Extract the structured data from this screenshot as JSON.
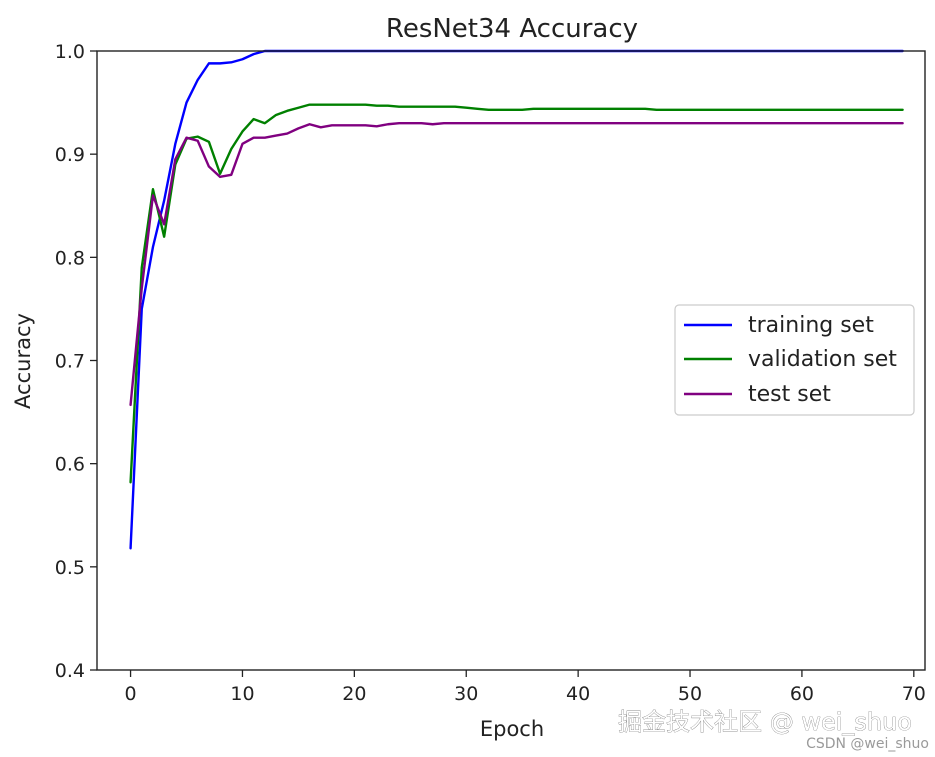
{
  "chart_data": {
    "type": "line",
    "title": "ResNet34 Accuracy",
    "xlabel": "Epoch",
    "ylabel": "Accuracy",
    "xlim": [
      -3,
      71
    ],
    "ylim": [
      0.4,
      1.0
    ],
    "xticks": [
      0,
      10,
      20,
      30,
      40,
      50,
      60,
      70
    ],
    "yticks": [
      0.4,
      0.5,
      0.6,
      0.7,
      0.8,
      0.9,
      1.0
    ],
    "ytick_labels": [
      "0.4",
      "0.5",
      "0.6",
      "0.7",
      "0.8",
      "0.9",
      "1.0"
    ],
    "grid": false,
    "legend_position": "center-right",
    "x": [
      0,
      1,
      2,
      3,
      4,
      5,
      6,
      7,
      8,
      9,
      10,
      11,
      12,
      13,
      14,
      15,
      16,
      17,
      18,
      19,
      20,
      21,
      22,
      23,
      24,
      25,
      26,
      27,
      28,
      29,
      30,
      31,
      32,
      33,
      34,
      35,
      36,
      37,
      38,
      39,
      40,
      41,
      42,
      43,
      44,
      45,
      46,
      47,
      48,
      49,
      50,
      51,
      52,
      53,
      54,
      55,
      56,
      57,
      58,
      59,
      60,
      61,
      62,
      63,
      64,
      65,
      66,
      67,
      68,
      69
    ],
    "series": [
      {
        "name": "training set",
        "color": "#0000ff",
        "values": [
          0.518,
          0.75,
          0.81,
          0.855,
          0.91,
          0.95,
          0.972,
          0.988,
          0.988,
          0.989,
          0.992,
          0.997,
          1.0,
          1.0,
          1.0,
          1.0,
          1.0,
          1.0,
          1.0,
          1.0,
          1.0,
          1.0,
          1.0,
          1.0,
          1.0,
          1.0,
          1.0,
          1.0,
          1.0,
          1.0,
          1.0,
          1.0,
          1.0,
          1.0,
          1.0,
          1.0,
          1.0,
          1.0,
          1.0,
          1.0,
          1.0,
          1.0,
          1.0,
          1.0,
          1.0,
          1.0,
          1.0,
          1.0,
          1.0,
          1.0,
          1.0,
          1.0,
          1.0,
          1.0,
          1.0,
          1.0,
          1.0,
          1.0,
          1.0,
          1.0,
          1.0,
          1.0,
          1.0,
          1.0,
          1.0,
          1.0,
          1.0,
          1.0,
          1.0,
          1.0
        ]
      },
      {
        "name": "validation set",
        "color": "#008000",
        "values": [
          0.582,
          0.79,
          0.866,
          0.82,
          0.89,
          0.915,
          0.917,
          0.912,
          0.881,
          0.905,
          0.922,
          0.934,
          0.93,
          0.938,
          0.942,
          0.945,
          0.948,
          0.948,
          0.948,
          0.948,
          0.948,
          0.948,
          0.947,
          0.947,
          0.946,
          0.946,
          0.946,
          0.946,
          0.946,
          0.946,
          0.945,
          0.944,
          0.943,
          0.943,
          0.943,
          0.943,
          0.944,
          0.944,
          0.944,
          0.944,
          0.944,
          0.944,
          0.944,
          0.944,
          0.944,
          0.944,
          0.944,
          0.943,
          0.943,
          0.943,
          0.943,
          0.943,
          0.943,
          0.943,
          0.943,
          0.943,
          0.943,
          0.943,
          0.943,
          0.943,
          0.943,
          0.943,
          0.943,
          0.943,
          0.943,
          0.943,
          0.943,
          0.943,
          0.943,
          0.943
        ]
      },
      {
        "name": "test set",
        "color": "#800080",
        "values": [
          0.657,
          0.77,
          0.86,
          0.832,
          0.895,
          0.916,
          0.913,
          0.888,
          0.878,
          0.88,
          0.91,
          0.916,
          0.916,
          0.918,
          0.92,
          0.925,
          0.929,
          0.926,
          0.928,
          0.928,
          0.928,
          0.928,
          0.927,
          0.929,
          0.93,
          0.93,
          0.93,
          0.929,
          0.93,
          0.93,
          0.93,
          0.93,
          0.93,
          0.93,
          0.93,
          0.93,
          0.93,
          0.93,
          0.93,
          0.93,
          0.93,
          0.93,
          0.93,
          0.93,
          0.93,
          0.93,
          0.93,
          0.93,
          0.93,
          0.93,
          0.93,
          0.93,
          0.93,
          0.93,
          0.93,
          0.93,
          0.93,
          0.93,
          0.93,
          0.93,
          0.93,
          0.93,
          0.93,
          0.93,
          0.93,
          0.93,
          0.93,
          0.93,
          0.93,
          0.93
        ]
      }
    ]
  },
  "watermark": {
    "main": "掘金技术社区 @ wei_shuo",
    "sub": "CSDN @wei_shuo"
  }
}
